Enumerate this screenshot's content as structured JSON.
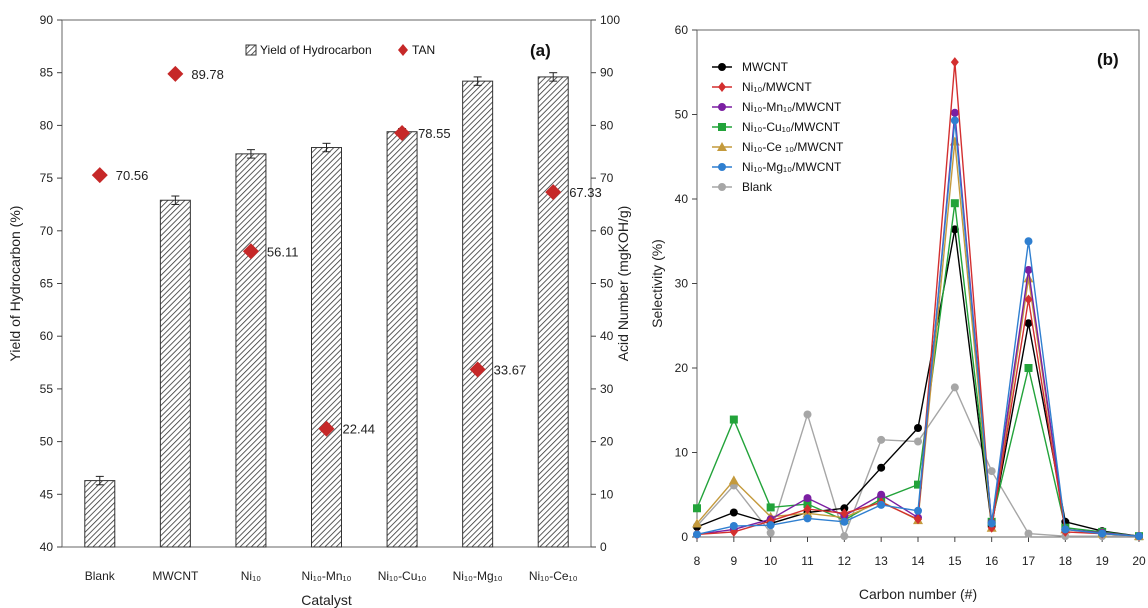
{
  "chart_data": [
    {
      "type": "bar",
      "panel_label": "(a)",
      "categories": [
        "Blank",
        "MWCNT",
        "Ni₁₀",
        "Ni₁₀-Mn₁₀",
        "Ni₁₀-Cu₁₀",
        "Ni₁₀-Mg₁₀",
        "Ni₁₀-Ce₁₀"
      ],
      "xlabel": "Catalyst",
      "ylabel": "Yield of Hydrocarbon (%)",
      "y2label": "Acid Number (mgKOH/g)",
      "ylim": [
        40,
        90
      ],
      "y2lim": [
        0,
        100
      ],
      "yticks": [
        40,
        45,
        50,
        55,
        60,
        65,
        70,
        75,
        80,
        85,
        90
      ],
      "y2ticks": [
        0,
        10,
        20,
        30,
        40,
        50,
        60,
        70,
        80,
        90,
        100
      ],
      "series": [
        {
          "name": "Yield of Hydrocarbon",
          "values": [
            46.3,
            72.9,
            77.3,
            77.9,
            79.4,
            84.2,
            84.6
          ],
          "errors": [
            0.4,
            0.4,
            0.4,
            0.4,
            0.3,
            0.4,
            0.4
          ],
          "axis": "left",
          "style": "hatched-bar"
        },
        {
          "name": "TAN",
          "values": [
            70.56,
            89.78,
            56.11,
            22.44,
            78.55,
            33.67,
            67.33
          ],
          "labels": [
            "70.56",
            "89.78",
            "56.11",
            "22.44",
            "78.55",
            "33.67",
            "67.33"
          ],
          "axis": "right",
          "style": "diamond",
          "color": "#c62828"
        }
      ],
      "legend_position": "top-center"
    },
    {
      "type": "line",
      "panel_label": "(b)",
      "x": [
        8,
        9,
        10,
        11,
        12,
        13,
        14,
        15,
        16,
        17,
        18,
        19,
        20
      ],
      "xlabel": "Carbon number (#)",
      "ylabel": "Selectivity (%)",
      "xlim": [
        8,
        20
      ],
      "ylim": [
        0,
        60
      ],
      "yticks": [
        0,
        10,
        20,
        30,
        40,
        50,
        60
      ],
      "legend_position": "top-left",
      "series": [
        {
          "name": "MWCNT",
          "color": "#000000",
          "marker": "circle",
          "values": [
            1.2,
            2.9,
            1.6,
            2.9,
            3.4,
            8.2,
            12.9,
            36.4,
            1.3,
            25.3,
            1.8,
            0.7,
            0.1
          ]
        },
        {
          "name": "Ni₁₀/MWCNT",
          "color": "#d32f2f",
          "marker": "diamond",
          "values": [
            0.3,
            0.6,
            1.9,
            3.3,
            2.8,
            4.1,
            2.1,
            56.2,
            1.1,
            28.1,
            0.6,
            0.4,
            0.1
          ]
        },
        {
          "name": "Ni₁₀-Mn₁₀/MWCNT",
          "color": "#7b1fa2",
          "marker": "circle",
          "values": [
            0.3,
            0.9,
            2.1,
            4.6,
            2.5,
            5.0,
            2.3,
            50.2,
            1.7,
            31.6,
            0.9,
            0.5,
            0.1
          ]
        },
        {
          "name": "Ni₁₀-Cu₁₀/MWCNT",
          "color": "#22a33a",
          "marker": "square",
          "values": [
            3.4,
            13.9,
            3.5,
            3.9,
            2.0,
            4.5,
            6.2,
            39.5,
            1.8,
            20.0,
            1.1,
            0.6,
            0.1
          ]
        },
        {
          "name": "Ni₁₀-Ce ₁₀/MWCNT",
          "color": "#c49a3c",
          "marker": "triangle",
          "values": [
            1.6,
            6.7,
            2.4,
            2.8,
            2.3,
            4.2,
            2.0,
            46.8,
            1.1,
            30.6,
            0.9,
            0.4,
            0.1
          ]
        },
        {
          "name": "Ni₁₀-Mg₁₀/MWCNT",
          "color": "#2f7fd0",
          "marker": "circle",
          "values": [
            0.3,
            1.3,
            1.4,
            2.2,
            1.8,
            3.8,
            3.1,
            49.3,
            1.6,
            35.0,
            0.9,
            0.4,
            0.1
          ]
        },
        {
          "name": "Blank",
          "color": "#a6a6a6",
          "marker": "circle",
          "values": [
            1.3,
            6.1,
            0.5,
            14.5,
            0.1,
            11.5,
            11.3,
            17.7,
            7.8,
            0.4,
            0.1,
            0.1,
            0.1
          ]
        }
      ]
    }
  ]
}
